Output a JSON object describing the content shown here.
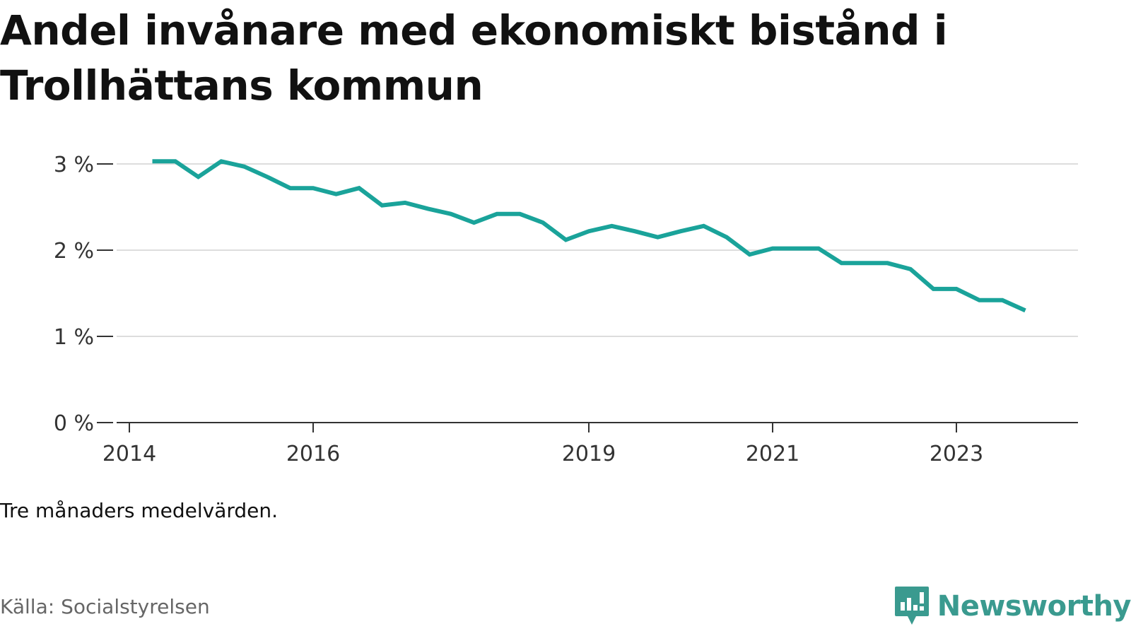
{
  "title": "Andel invånare med ekonomiskt bistånd i Trollhättans kommun",
  "note": "Tre månaders medelvärden.",
  "source": "Källa: Socialstyrelsen",
  "brand": {
    "name": "Newsworthy",
    "icon": "newsworthy-logo-icon",
    "color": "#3a9a8f"
  },
  "colors": {
    "line": "#1aa39a",
    "grid": "#dddddd",
    "axis": "#333333"
  },
  "chart_data": {
    "type": "line",
    "title": "Andel invånare med ekonomiskt bistånd i Trollhättans kommun",
    "xlabel": "",
    "ylabel": "",
    "ylim": [
      0,
      3
    ],
    "xlim": [
      "2014-01",
      "2024-06"
    ],
    "grid": true,
    "y_ticks": [
      {
        "value": 0,
        "label": "0 %"
      },
      {
        "value": 1,
        "label": "1 %"
      },
      {
        "value": 2,
        "label": "2 %"
      },
      {
        "value": 3,
        "label": "3 %"
      }
    ],
    "x_ticks": [
      {
        "value": "2014-01",
        "label": "2014"
      },
      {
        "value": "2016-01",
        "label": "2016"
      },
      {
        "value": "2019-01",
        "label": "2019"
      },
      {
        "value": "2021-01",
        "label": "2021"
      },
      {
        "value": "2023-01",
        "label": "2023"
      }
    ],
    "x": [
      "2014-04",
      "2014-07",
      "2014-10",
      "2015-01",
      "2015-04",
      "2015-07",
      "2015-10",
      "2016-01",
      "2016-04",
      "2016-07",
      "2016-10",
      "2017-01",
      "2017-04",
      "2017-07",
      "2017-10",
      "2018-01",
      "2018-04",
      "2018-07",
      "2018-10",
      "2019-01",
      "2019-04",
      "2019-07",
      "2019-10",
      "2020-01",
      "2020-04",
      "2020-07",
      "2020-10",
      "2021-01",
      "2021-04",
      "2021-07",
      "2021-10",
      "2022-01",
      "2022-04",
      "2022-07",
      "2022-10",
      "2023-01",
      "2023-04",
      "2023-07",
      "2023-10"
    ],
    "values": [
      3.03,
      3.03,
      2.85,
      3.03,
      2.97,
      2.85,
      2.72,
      2.72,
      2.65,
      2.72,
      2.52,
      2.55,
      2.48,
      2.42,
      2.32,
      2.42,
      2.42,
      2.32,
      2.12,
      2.22,
      2.28,
      2.22,
      2.15,
      2.22,
      2.28,
      2.15,
      1.95,
      2.02,
      2.02,
      2.02,
      1.85,
      1.85,
      1.85,
      1.78,
      1.55,
      1.55,
      1.42,
      1.42,
      1.3
    ]
  }
}
